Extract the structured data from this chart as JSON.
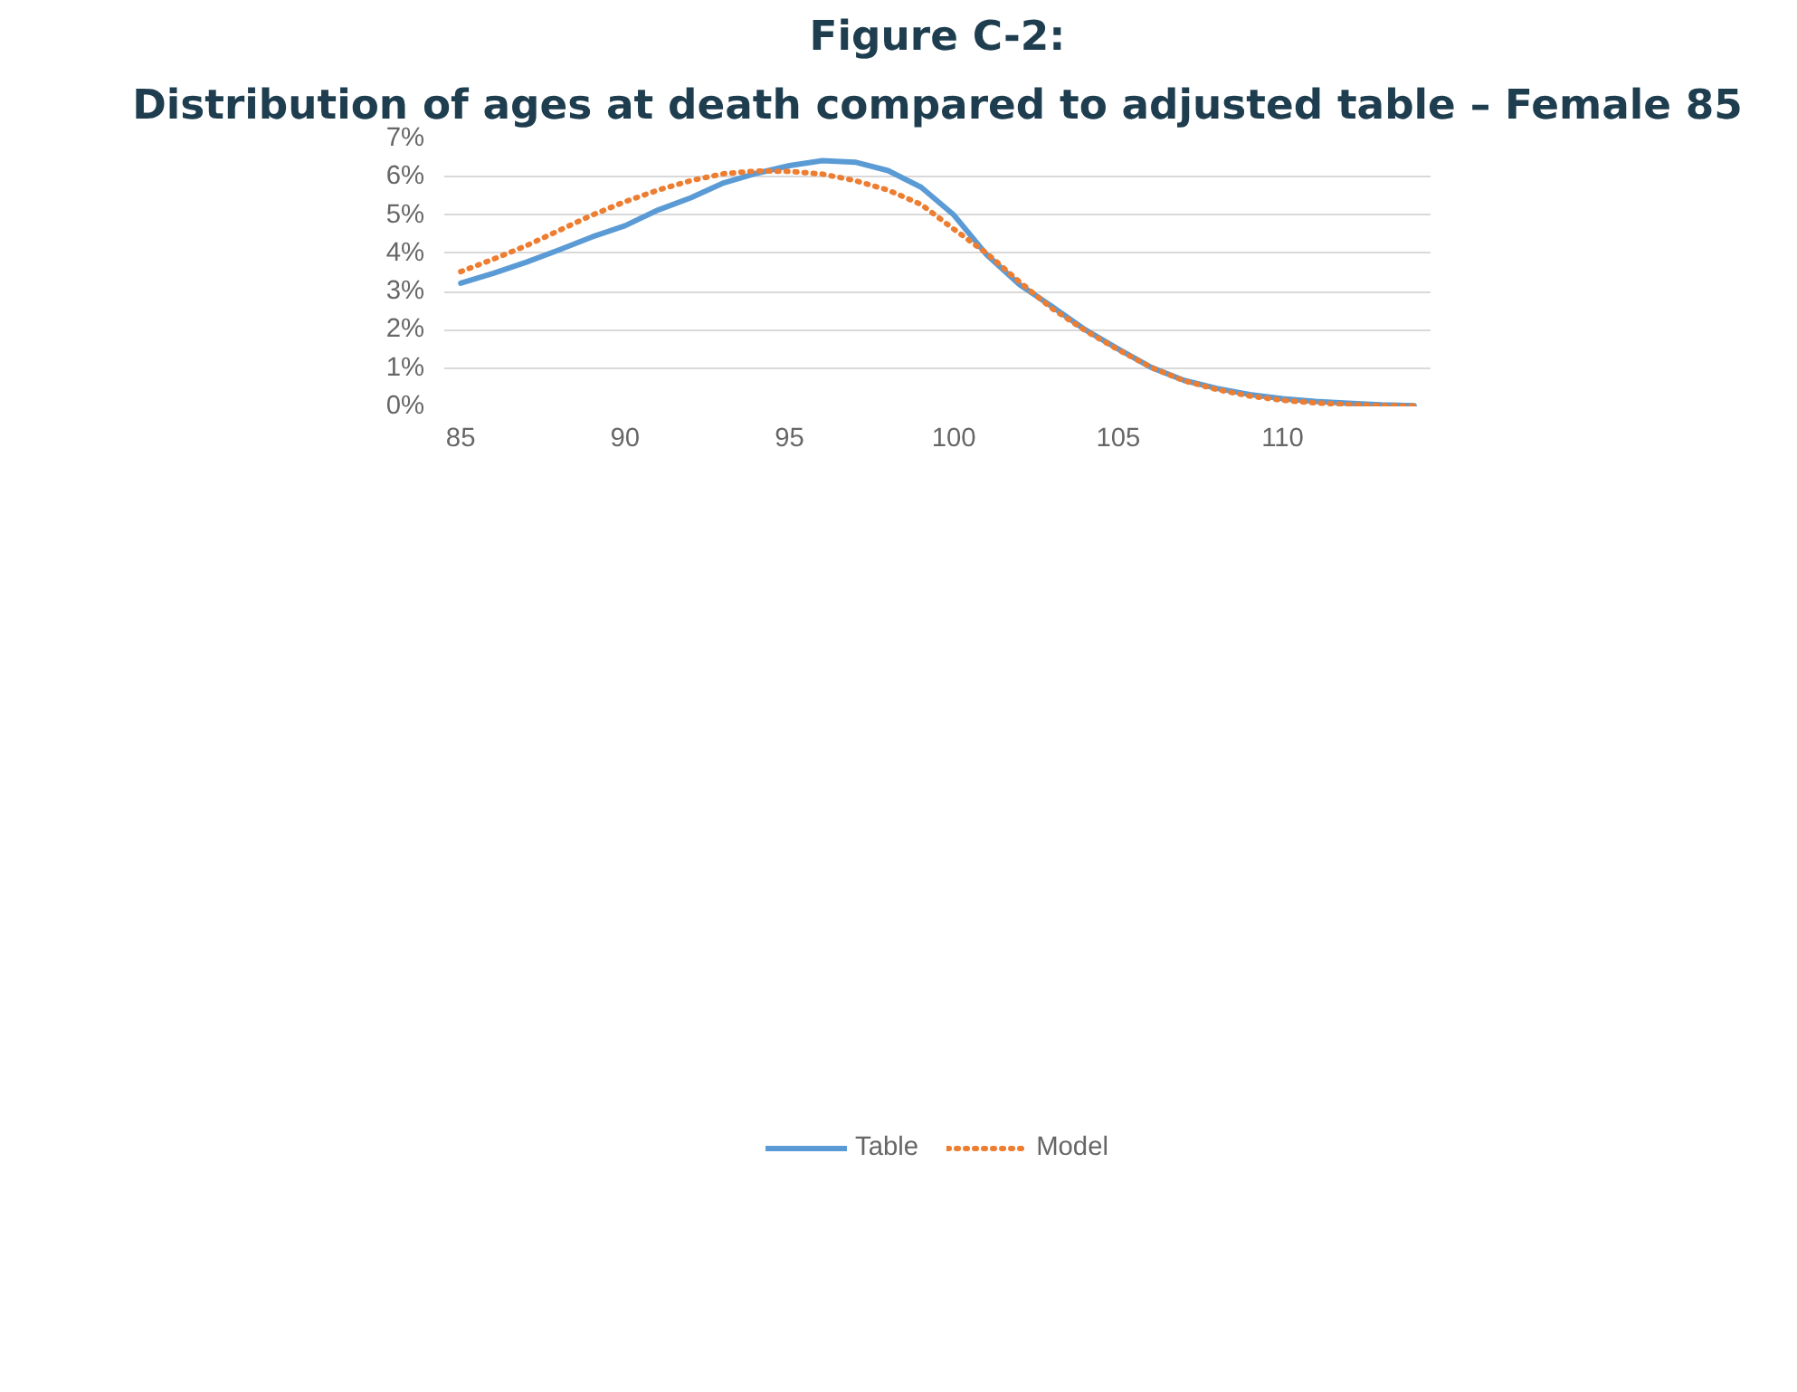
{
  "chart_data": {
    "type": "line",
    "title": "Figure C-2:",
    "subtitle": "Distribution of ages at death compared to adjusted table – Female 85",
    "x": [
      85,
      86,
      87,
      88,
      89,
      90,
      91,
      92,
      93,
      94,
      95,
      96,
      97,
      98,
      99,
      100,
      101,
      102,
      103,
      104,
      105,
      106,
      107,
      108,
      109,
      110,
      111,
      112,
      113,
      114
    ],
    "series": [
      {
        "name": "Table",
        "color": "#5b9bd5",
        "line_style": "solid",
        "values": [
          3.22,
          3.48,
          3.77,
          4.09,
          4.43,
          4.72,
          5.13,
          5.45,
          5.84,
          6.09,
          6.29,
          6.42,
          6.38,
          6.16,
          5.73,
          5.0,
          3.96,
          3.18,
          2.6,
          2.0,
          1.5,
          1.02,
          0.68,
          0.47,
          0.31,
          0.2,
          0.13,
          0.08,
          0.04,
          0.02
        ]
      },
      {
        "name": "Model",
        "color": "#ed7d31",
        "line_style": "dotted",
        "values": [
          3.52,
          3.85,
          4.2,
          4.6,
          5.0,
          5.35,
          5.65,
          5.9,
          6.08,
          6.15,
          6.14,
          6.07,
          5.9,
          5.65,
          5.28,
          4.63,
          4.0,
          3.25,
          2.55,
          1.98,
          1.48,
          1.02,
          0.67,
          0.44,
          0.27,
          0.16,
          0.09,
          0.05,
          0.02,
          0.01
        ]
      }
    ],
    "xlim": [
      84.5,
      114.5
    ],
    "xticks": [
      85,
      90,
      95,
      100,
      105,
      110
    ],
    "ylim": [
      0,
      7
    ],
    "yticks": [
      {
        "value": 0,
        "label": "0%"
      },
      {
        "value": 1,
        "label": "1%"
      },
      {
        "value": 2,
        "label": "2%"
      },
      {
        "value": 3,
        "label": "3%"
      },
      {
        "value": 4,
        "label": "4%"
      },
      {
        "value": 5,
        "label": "5%"
      },
      {
        "value": 6,
        "label": "6%"
      },
      {
        "value": 7,
        "label": "7%"
      }
    ],
    "grid": "y",
    "legend": "bottom",
    "marker": "none"
  }
}
